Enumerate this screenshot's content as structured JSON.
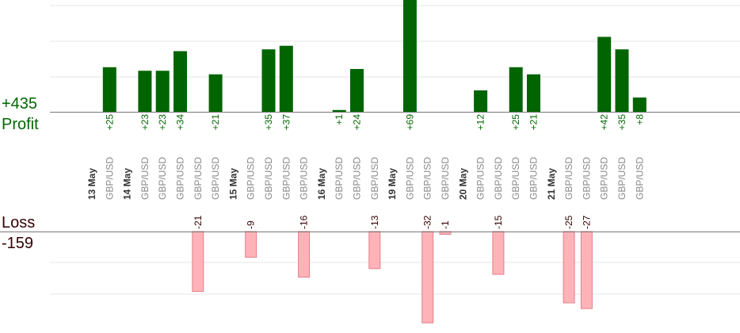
{
  "summary": {
    "profit_total": "+435",
    "profit_label": "Profit",
    "loss_label": "Loss",
    "loss_total": "-159"
  },
  "colors": {
    "profit_bar": "#006400",
    "loss_bar": "#ffb3b8",
    "loss_bar_stroke": "#e08088",
    "profit_text": "#006600",
    "loss_text": "#330000",
    "date_text": "#333333",
    "pair_text": "#888888",
    "grid": "#e6e6e6",
    "axis": "#777777"
  },
  "chart_data": {
    "type": "bar",
    "grid": true,
    "columns": [
      {
        "kind": "date",
        "label": "13 May"
      },
      {
        "kind": "trade",
        "label": "GBP/USD",
        "value": 25
      },
      {
        "kind": "date",
        "label": "14 May"
      },
      {
        "kind": "trade",
        "label": "GBP/USD",
        "value": 23
      },
      {
        "kind": "trade",
        "label": "GBP/USD",
        "value": 23
      },
      {
        "kind": "trade",
        "label": "GBP/USD",
        "value": 34
      },
      {
        "kind": "trade",
        "label": "GBP/USD",
        "value": -21
      },
      {
        "kind": "trade",
        "label": "GBP/USD",
        "value": 21
      },
      {
        "kind": "date",
        "label": "15 May"
      },
      {
        "kind": "trade",
        "label": "GBP/USD",
        "value": -9
      },
      {
        "kind": "trade",
        "label": "GBP/USD",
        "value": 35
      },
      {
        "kind": "trade",
        "label": "GBP/USD",
        "value": 37
      },
      {
        "kind": "trade",
        "label": "GBP/USD",
        "value": -16
      },
      {
        "kind": "date",
        "label": "16 May"
      },
      {
        "kind": "trade",
        "label": "GBP/USD",
        "value": 1
      },
      {
        "kind": "trade",
        "label": "GBP/USD",
        "value": 24
      },
      {
        "kind": "trade",
        "label": "GBP/USD",
        "value": -13
      },
      {
        "kind": "date",
        "label": "19 May"
      },
      {
        "kind": "trade",
        "label": "GBP/USD",
        "value": 69
      },
      {
        "kind": "trade",
        "label": "GBP/USD",
        "value": -32
      },
      {
        "kind": "trade",
        "label": "GBP/USD",
        "value": -1
      },
      {
        "kind": "date",
        "label": "20 May"
      },
      {
        "kind": "trade",
        "label": "GBP/USD",
        "value": 12
      },
      {
        "kind": "trade",
        "label": "GBP/USD",
        "value": -15
      },
      {
        "kind": "trade",
        "label": "GBP/USD",
        "value": 25
      },
      {
        "kind": "trade",
        "label": "GBP/USD",
        "value": 21
      },
      {
        "kind": "date",
        "label": "21 May"
      },
      {
        "kind": "trade",
        "label": "GBP/USD",
        "value": -25
      },
      {
        "kind": "trade",
        "label": "GBP/USD",
        "value": -27
      },
      {
        "kind": "trade",
        "label": "GBP/USD",
        "value": 42
      },
      {
        "kind": "trade",
        "label": "GBP/USD",
        "value": 35
      },
      {
        "kind": "trade",
        "label": "GBP/USD",
        "value": 8
      }
    ]
  }
}
